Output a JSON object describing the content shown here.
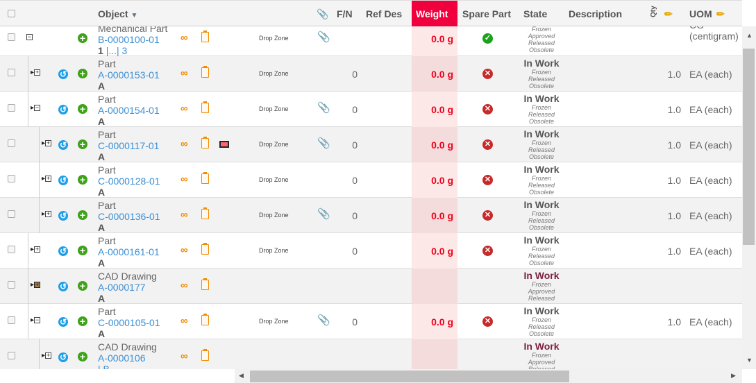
{
  "header": {
    "object": "Object",
    "fn": "F/N",
    "ref_des": "Ref Des",
    "weight": "Weight",
    "spare_part": "Spare Part",
    "state": "State",
    "description": "Description",
    "qty": "Qty",
    "uom": "UOM",
    "sort_icon": "caret-down-icon",
    "edit_icon": "pencil-icon",
    "attach_icon": "paperclip-icon"
  },
  "colors": {
    "weight_header": "#f0003c",
    "link": "#3a8fd6",
    "weight_value": "#f0001c",
    "cad_state": "#7a1f3d"
  },
  "rows": [
    {
      "level": 0,
      "node": "minus",
      "refresh": false,
      "type": "Mechanical Part",
      "number": "B-0000100-01",
      "revision": "1",
      "rev_links": "|...| 3",
      "image": false,
      "drop_zone": "Drop Zone",
      "attach": true,
      "fn": "",
      "weight": "0.0 g",
      "spare": "yes",
      "state": "",
      "state_options": [
        "Frozen",
        "Approved",
        "Released",
        "Obsolete"
      ],
      "qty": "",
      "uom": "CG (centigram)",
      "cad": false
    },
    {
      "level": 1,
      "node": "plus",
      "refresh": true,
      "type": "Part",
      "number": "A-0000153-01",
      "revision": "A",
      "image": false,
      "drop_zone": "Drop Zone",
      "attach": false,
      "fn": "0",
      "weight": "0.0 g",
      "spare": "no",
      "state": "In Work",
      "state_options": [
        "Frozen",
        "Released",
        "Obsolete"
      ],
      "qty": "1.0",
      "uom": "EA (each)",
      "cad": false
    },
    {
      "level": 1,
      "node": "minus",
      "refresh": true,
      "type": "Part",
      "number": "A-0000154-01",
      "revision": "A",
      "image": false,
      "drop_zone": "Drop Zone",
      "attach": true,
      "fn": "0",
      "weight": "0.0 g",
      "spare": "no",
      "state": "In Work",
      "state_options": [
        "Frozen",
        "Released",
        "Obsolete"
      ],
      "qty": "1.0",
      "uom": "EA (each)",
      "cad": false
    },
    {
      "level": 2,
      "node": "plus",
      "refresh": true,
      "type": "Part",
      "number": "C-0000117-01",
      "revision": "A",
      "image": true,
      "drop_zone": "Drop Zone",
      "attach": true,
      "fn": "0",
      "weight": "0.0 g",
      "spare": "no",
      "state": "In Work",
      "state_options": [
        "Frozen",
        "Released",
        "Obsolete"
      ],
      "qty": "1.0",
      "uom": "EA (each)",
      "cad": false
    },
    {
      "level": 2,
      "node": "plus",
      "refresh": true,
      "type": "Part",
      "number": "C-0000128-01",
      "revision": "A",
      "image": false,
      "drop_zone": "Drop Zone",
      "attach": false,
      "fn": "0",
      "weight": "0.0 g",
      "spare": "no",
      "state": "In Work",
      "state_options": [
        "Frozen",
        "Released",
        "Obsolete"
      ],
      "qty": "1.0",
      "uom": "EA (each)",
      "cad": false
    },
    {
      "level": 2,
      "node": "plus",
      "refresh": true,
      "type": "Part",
      "number": "C-0000136-01",
      "revision": "A",
      "image": false,
      "drop_zone": "Drop Zone",
      "attach": true,
      "fn": "0",
      "weight": "0.0 g",
      "spare": "no",
      "state": "In Work",
      "state_options": [
        "Frozen",
        "Released",
        "Obsolete"
      ],
      "qty": "1.0",
      "uom": "EA (each)",
      "cad": false
    },
    {
      "level": 1,
      "node": "plus",
      "refresh": true,
      "type": "Part",
      "number": "A-0000161-01",
      "revision": "A",
      "image": false,
      "drop_zone": "Drop Zone",
      "attach": false,
      "fn": "0",
      "weight": "0.0 g",
      "spare": "no",
      "state": "In Work",
      "state_options": [
        "Frozen",
        "Released",
        "Obsolete"
      ],
      "qty": "1.0",
      "uom": "EA (each)",
      "cad": false
    },
    {
      "level": 1,
      "node": "dark",
      "refresh": true,
      "type": "CAD Drawing",
      "number": "A-0000177",
      "revision": "A",
      "image": false,
      "drop_zone": "",
      "attach": false,
      "fn": "",
      "weight": "",
      "spare": "",
      "state": "In Work",
      "state_options": [
        "Frozen",
        "Approved",
        "Released"
      ],
      "qty": "",
      "uom": "",
      "cad": true
    },
    {
      "level": 1,
      "node": "minus",
      "refresh": true,
      "type": "Part",
      "number": "C-0000105-01",
      "revision": "A",
      "image": false,
      "drop_zone": "Drop Zone",
      "attach": true,
      "fn": "0",
      "weight": "0.0 g",
      "spare": "no",
      "state": "In Work",
      "state_options": [
        "Frozen",
        "Released",
        "Obsolete"
      ],
      "qty": "1.0",
      "uom": "EA (each)",
      "cad": false
    },
    {
      "level": 2,
      "node": "plus",
      "refresh": true,
      "type": "CAD Drawing",
      "number": "A-0000106",
      "revision": "",
      "rev_links": "| B",
      "image": false,
      "drop_zone": "",
      "attach": false,
      "fn": "",
      "weight": "",
      "spare": "",
      "state": "In Work",
      "state_options": [
        "Frozen",
        "Approved",
        "Released"
      ],
      "qty": "",
      "uom": "",
      "cad": true
    }
  ]
}
